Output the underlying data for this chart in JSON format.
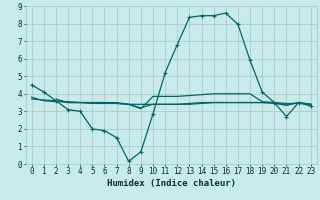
{
  "xlabel": "Humidex (Indice chaleur)",
  "ylabel": "",
  "xlim": [
    -0.5,
    23.5
  ],
  "ylim": [
    0,
    9
  ],
  "yticks": [
    0,
    1,
    2,
    3,
    4,
    5,
    6,
    7,
    8,
    9
  ],
  "xticks": [
    0,
    1,
    2,
    3,
    4,
    5,
    6,
    7,
    8,
    9,
    10,
    11,
    12,
    13,
    14,
    15,
    16,
    17,
    18,
    19,
    20,
    21,
    22,
    23
  ],
  "bg_color": "#c8eaea",
  "grid_color": "#aacccc",
  "line_color": "#006666",
  "line1_x": [
    0,
    1,
    2,
    3,
    4,
    5,
    6,
    7,
    8,
    9,
    10,
    11,
    12,
    13,
    14,
    15,
    16,
    17,
    18,
    19,
    20,
    21,
    22,
    23
  ],
  "line1_y": [
    4.5,
    4.1,
    3.6,
    3.1,
    3.0,
    2.0,
    1.9,
    1.5,
    0.15,
    0.7,
    2.85,
    5.2,
    6.8,
    8.35,
    8.45,
    8.45,
    8.6,
    7.95,
    5.9,
    4.1,
    3.5,
    2.7,
    3.5,
    3.3
  ],
  "line2_x": [
    0,
    1,
    2,
    3,
    4,
    5,
    6,
    7,
    8,
    9,
    10,
    11,
    12,
    13,
    14,
    15,
    16,
    17,
    18,
    19,
    20,
    21,
    22,
    23
  ],
  "line2_y": [
    3.8,
    3.6,
    3.55,
    3.55,
    3.5,
    3.5,
    3.5,
    3.45,
    3.4,
    3.4,
    3.4,
    3.4,
    3.4,
    3.45,
    3.5,
    3.5,
    3.5,
    3.5,
    3.5,
    3.5,
    3.5,
    3.45,
    3.45,
    3.4
  ],
  "line3_x": [
    0,
    1,
    2,
    3,
    4,
    5,
    6,
    7,
    8,
    9,
    10,
    11,
    12,
    13,
    14,
    15,
    16,
    17,
    18,
    19,
    20,
    21,
    22,
    23
  ],
  "line3_y": [
    3.7,
    3.65,
    3.6,
    3.5,
    3.5,
    3.45,
    3.45,
    3.45,
    3.4,
    3.2,
    3.4,
    3.4,
    3.4,
    3.4,
    3.45,
    3.5,
    3.5,
    3.5,
    3.5,
    3.5,
    3.45,
    3.35,
    3.5,
    3.4
  ],
  "line4_x": [
    2,
    3,
    4,
    5,
    6,
    7,
    8,
    9,
    10,
    11,
    12,
    13,
    14,
    15,
    16,
    17,
    18,
    19,
    20,
    21,
    22,
    23
  ],
  "line4_y": [
    3.7,
    3.5,
    3.5,
    3.5,
    3.5,
    3.5,
    3.4,
    3.15,
    3.85,
    3.85,
    3.85,
    3.9,
    3.95,
    4.0,
    4.0,
    4.0,
    4.0,
    3.55,
    3.5,
    3.35,
    3.5,
    3.4
  ]
}
